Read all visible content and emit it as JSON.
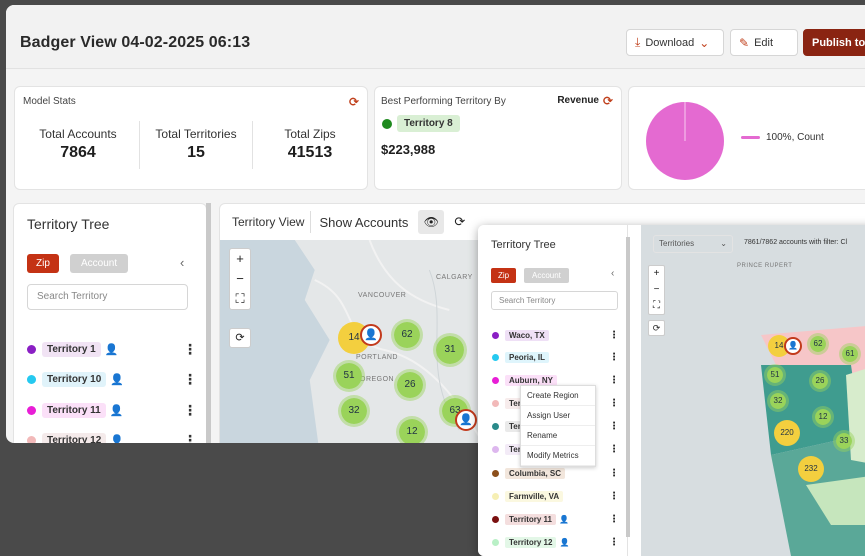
{
  "header": {
    "title": "Badger View 04-02-2025 06:13",
    "download_label": "Download",
    "edit_label": "Edit",
    "publish_label": "Publish to"
  },
  "model_stats": {
    "caption": "Model Stats",
    "items": [
      {
        "label": "Total Accounts",
        "value": "7864"
      },
      {
        "label": "Total Territories",
        "value": "15"
      },
      {
        "label": "Total Zips",
        "value": "41513"
      }
    ]
  },
  "best_territory": {
    "caption": "Best Performing Territory By",
    "metric": "Revenue",
    "territory": "Territory 8",
    "value": "$223,988"
  },
  "pie_card": {
    "legend": "100%, Count",
    "slice_fraction": 1.0,
    "color": "#e46ad1"
  },
  "tree": {
    "title": "Territory Tree",
    "zip_label": "Zip",
    "account_label": "Account",
    "search_placeholder": "Search Territory",
    "items": [
      {
        "name": "Territory 1",
        "color": "#8a1fc4"
      },
      {
        "name": "Territory 10",
        "color": "#25c9f0"
      },
      {
        "name": "Territory 11",
        "color": "#e81ed6"
      },
      {
        "name": "Territory 12",
        "color": "#f2b9b9"
      }
    ]
  },
  "map": {
    "tab_view": "Territory View",
    "tab_accounts": "Show Accounts",
    "labels": {
      "calgary": "CALGARY",
      "vancouver": "VANCOUVER",
      "portland": "PORTLAND",
      "oregon": "OREGON"
    },
    "clusters": [
      "14",
      "62",
      "31",
      "51",
      "26",
      "32",
      "12",
      "63"
    ]
  },
  "overlay": {
    "tree_title": "Territory Tree",
    "zip_label": "Zip",
    "account_label": "Account",
    "search_placeholder": "Search Territory",
    "items": [
      {
        "name": "Waco, TX",
        "color": "#8a1fc4",
        "bg": "#efe0f6"
      },
      {
        "name": "Peoria, IL",
        "color": "#25c9f0",
        "bg": "#dff5fc"
      },
      {
        "name": "Auburn, NY",
        "color": "#e81ed6",
        "bg": "#fbe0f8"
      },
      {
        "name": "Terr",
        "color": "#f2b9b9",
        "bg": "#f7ecec"
      },
      {
        "name": "Terr",
        "color": "#2a8a8a",
        "bg": "#eaeaea"
      },
      {
        "name": "Terr",
        "color": "#ddb7ee",
        "bg": "#f3ebf7"
      },
      {
        "name": "Columbia, SC",
        "color": "#8c4f1b",
        "bg": "#f2e6dc"
      },
      {
        "name": "Farmville, VA",
        "color": "#f6efb4",
        "bg": "#fbf8e0"
      },
      {
        "name": "Territory 11",
        "color": "#7a1010",
        "bg": "#f4dede"
      },
      {
        "name": "Territory 12",
        "color": "#b9f0c6",
        "bg": "#e3f7e7"
      }
    ],
    "menu": [
      "Create Region",
      "Assign User",
      "Rename",
      "Modify Metrics"
    ],
    "select_label": "Territories",
    "count_text": "7861/7862 accounts with filter: Cl",
    "map_labels": {
      "prince_rupert": "PRINCE RUPERT"
    },
    "clusters": [
      "14",
      "62",
      "61",
      "51",
      "26",
      "32",
      "12",
      "220",
      "33",
      "232"
    ]
  }
}
